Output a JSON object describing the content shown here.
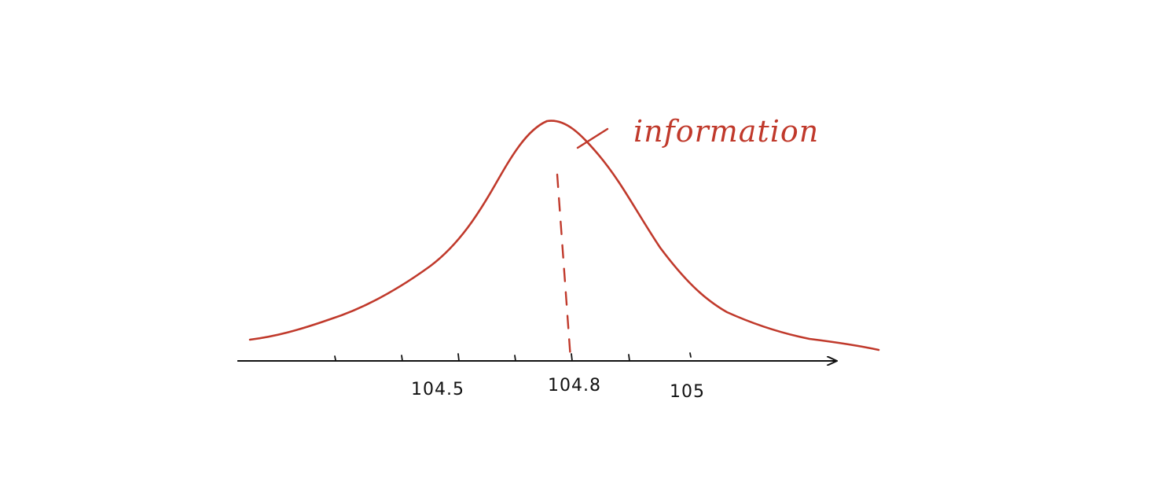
{
  "diagram": {
    "curve_type": "bell-shaped distribution curve",
    "annotation": "information",
    "tick_labels": [
      "104.5",
      "104.8",
      "105"
    ],
    "marker": "dashed vertical line at 104.8",
    "colors": {
      "curve": "#c0392b",
      "axis": "#111111",
      "background": "#ffffff"
    }
  }
}
